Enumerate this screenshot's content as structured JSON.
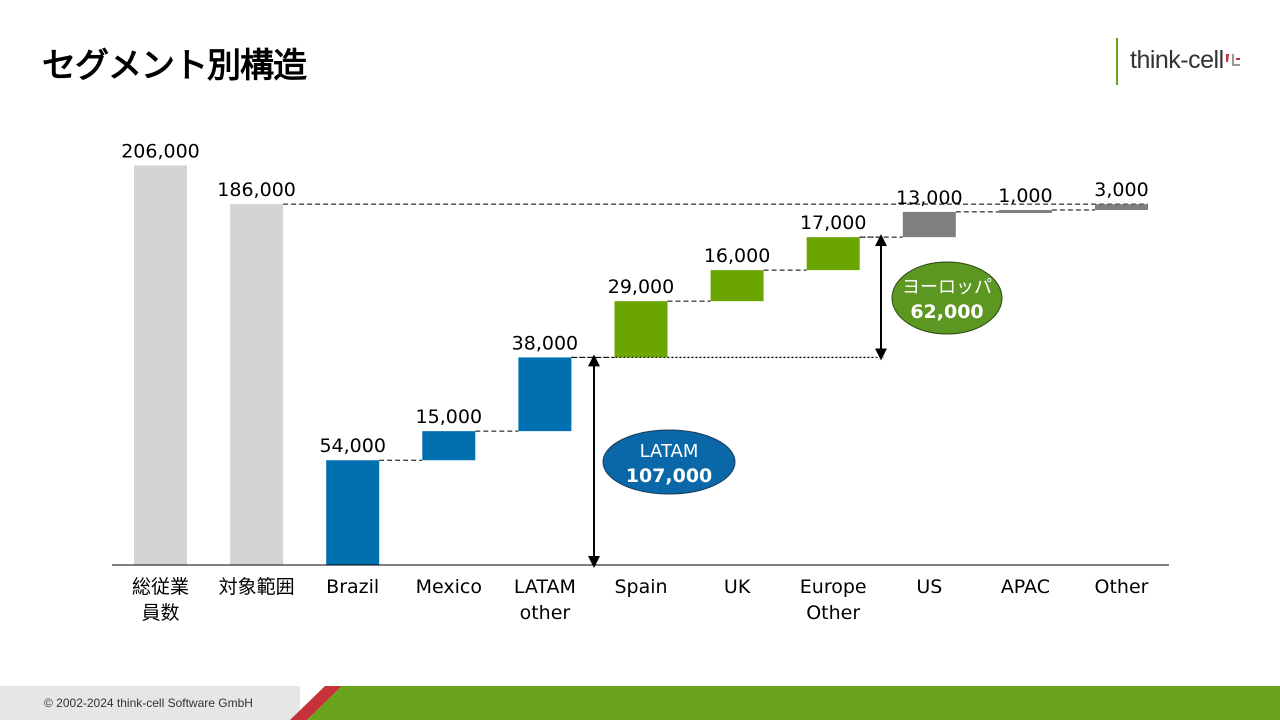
{
  "title": "セグメント別構造",
  "logo": {
    "text": "think-cell"
  },
  "footer": {
    "copyright": "© 2002-2024 think-cell Software GmbH"
  },
  "colors": {
    "total": "#d3d4d6",
    "latam": "#0070b0",
    "europe": "#6aa500",
    "other": "#7f7f7f",
    "footer_green": "#6aa31c",
    "footer_red": "#c6323a",
    "footer_grey": "#e6e6e6",
    "latam_bubble": "#0a68a8",
    "europe_bubble": "#5c9722"
  },
  "chart_data": {
    "type": "bar",
    "subtype": "waterfall",
    "ylim": [
      0,
      210000
    ],
    "categories": [
      [
        "総従業",
        "員数"
      ],
      [
        "対象範囲"
      ],
      [
        "Brazil"
      ],
      [
        "Mexico"
      ],
      [
        "LATAM",
        "other"
      ],
      [
        "Spain"
      ],
      [
        "UK"
      ],
      [
        "Europe",
        "Other"
      ],
      [
        "US"
      ],
      [
        "APAC"
      ],
      [
        "Other"
      ]
    ],
    "bars": [
      {
        "category": "総従業員数",
        "value": 206000,
        "label": "206,000",
        "kind": "total"
      },
      {
        "category": "対象範囲",
        "value": 186000,
        "label": "186,000",
        "kind": "total"
      },
      {
        "category": "Brazil",
        "value": 54000,
        "label": "54,000",
        "kind": "latam"
      },
      {
        "category": "Mexico",
        "value": 15000,
        "label": "15,000",
        "kind": "latam"
      },
      {
        "category": "LATAM other",
        "value": 38000,
        "label": "38,000",
        "kind": "latam"
      },
      {
        "category": "Spain",
        "value": 29000,
        "label": "29,000",
        "kind": "europe"
      },
      {
        "category": "UK",
        "value": 16000,
        "label": "16,000",
        "kind": "europe"
      },
      {
        "category": "Europe Other",
        "value": 17000,
        "label": "17,000",
        "kind": "europe"
      },
      {
        "category": "US",
        "value": 13000,
        "label": "13,000",
        "kind": "other"
      },
      {
        "category": "APAC",
        "value": 1000,
        "label": "1,000",
        "kind": "other"
      },
      {
        "category": "Other",
        "value": 3000,
        "label": "3,000",
        "kind": "other"
      }
    ],
    "annotations": [
      {
        "name": "LATAM",
        "value_label": "107,000",
        "from": 0,
        "to": 107000
      },
      {
        "name": "ヨーロッパ",
        "value_label": "62,000",
        "from": 107000,
        "to": 169000
      }
    ],
    "legend": "none",
    "grid": false
  }
}
